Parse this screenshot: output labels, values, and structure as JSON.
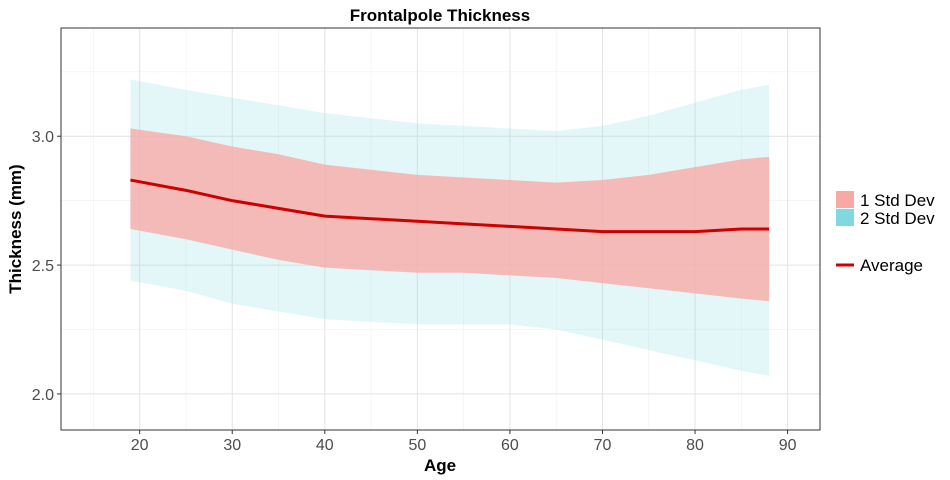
{
  "chart_data": {
    "type": "area",
    "title": "Frontalpole Thickness",
    "xlabel": "Age",
    "ylabel": "Thickness (mm)",
    "xlim": [
      11.5,
      93.5
    ],
    "ylim": [
      1.86,
      3.42
    ],
    "x_ticks": [
      20,
      30,
      40,
      50,
      60,
      70,
      80,
      90
    ],
    "y_ticks": [
      2.0,
      2.5,
      3.0
    ],
    "grid": true,
    "legend_position": "right",
    "x": [
      19,
      25,
      30,
      35,
      40,
      45,
      50,
      55,
      60,
      65,
      70,
      75,
      80,
      85,
      88
    ],
    "series": [
      {
        "name": "2 Std Dev",
        "color": "#7fd9df",
        "upper": [
          3.22,
          3.18,
          3.15,
          3.12,
          3.09,
          3.07,
          3.05,
          3.04,
          3.03,
          3.02,
          3.04,
          3.08,
          3.13,
          3.18,
          3.2
        ],
        "lower": [
          2.44,
          2.4,
          2.35,
          2.32,
          2.29,
          2.28,
          2.27,
          2.27,
          2.27,
          2.25,
          2.21,
          2.17,
          2.13,
          2.09,
          2.07
        ]
      },
      {
        "name": "1 Std Dev",
        "color": "#f8a9a5",
        "upper": [
          3.03,
          3.0,
          2.96,
          2.93,
          2.89,
          2.87,
          2.85,
          2.84,
          2.83,
          2.82,
          2.83,
          2.85,
          2.88,
          2.91,
          2.92
        ],
        "lower": [
          2.64,
          2.6,
          2.56,
          2.52,
          2.49,
          2.48,
          2.47,
          2.47,
          2.46,
          2.45,
          2.43,
          2.41,
          2.39,
          2.37,
          2.36
        ]
      },
      {
        "name": "Average",
        "color": "#cc0000",
        "values": [
          2.83,
          2.79,
          2.75,
          2.72,
          2.69,
          2.68,
          2.67,
          2.66,
          2.65,
          2.64,
          2.63,
          2.63,
          2.63,
          2.64,
          2.64
        ]
      }
    ]
  }
}
